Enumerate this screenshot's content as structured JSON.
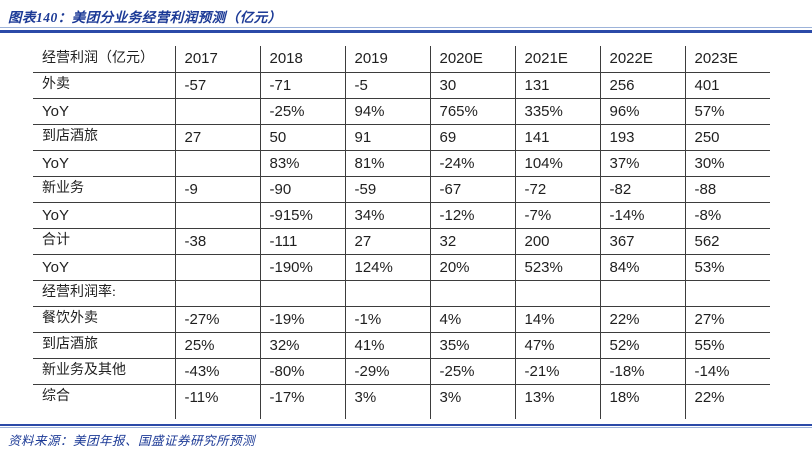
{
  "figure": {
    "caption": "图表140：美团分业务经营利润预测（亿元）"
  },
  "footer": {
    "source_note": "资料来源：美团年报、国盛证券研究所预测"
  },
  "colors": {
    "accent_blue": "#1c3a96",
    "rule_dark": "#2b4aa8",
    "rule_light": "#9db3d9",
    "grid_line": "#3d3d3d",
    "table_text": "#1f1f1f",
    "background": "#ffffff"
  },
  "chart_data": {
    "type": "table",
    "title": "美团分业务经营利润预测（亿元）",
    "columns": [
      "经营利润（亿元）",
      "2017",
      "2018",
      "2019",
      "2020E",
      "2021E",
      "2022E",
      "2023E"
    ],
    "rows": [
      [
        "外卖",
        "-57",
        "-71",
        "-5",
        "30",
        "131",
        "256",
        "401"
      ],
      [
        "YoY",
        "",
        "-25%",
        "94%",
        "765%",
        "335%",
        "96%",
        "57%"
      ],
      [
        "到店酒旅",
        "27",
        "50",
        "91",
        "69",
        "141",
        "193",
        "250"
      ],
      [
        "YoY",
        "",
        "83%",
        "81%",
        "-24%",
        "104%",
        "37%",
        "30%"
      ],
      [
        "新业务",
        "-9",
        "-90",
        "-59",
        "-67",
        "-72",
        "-82",
        "-88"
      ],
      [
        "YoY",
        "",
        "-915%",
        "34%",
        "-12%",
        "-7%",
        "-14%",
        "-8%"
      ],
      [
        "合计",
        "-38",
        "-111",
        "27",
        "32",
        "200",
        "367",
        "562"
      ],
      [
        "YoY",
        "",
        "-190%",
        "124%",
        "20%",
        "523%",
        "84%",
        "53%"
      ],
      [
        "经营利润率:",
        "",
        "",
        "",
        "",
        "",
        "",
        ""
      ],
      [
        "餐饮外卖",
        "-27%",
        "-19%",
        "-1%",
        "4%",
        "14%",
        "22%",
        "27%"
      ],
      [
        "到店酒旅",
        "25%",
        "32%",
        "41%",
        "35%",
        "47%",
        "52%",
        "55%"
      ],
      [
        "新业务及其他",
        "-43%",
        "-80%",
        "-29%",
        "-25%",
        "-21%",
        "-18%",
        "-14%"
      ],
      [
        "综合",
        "-11%",
        "-17%",
        "3%",
        "3%",
        "13%",
        "18%",
        "22%"
      ]
    ]
  }
}
